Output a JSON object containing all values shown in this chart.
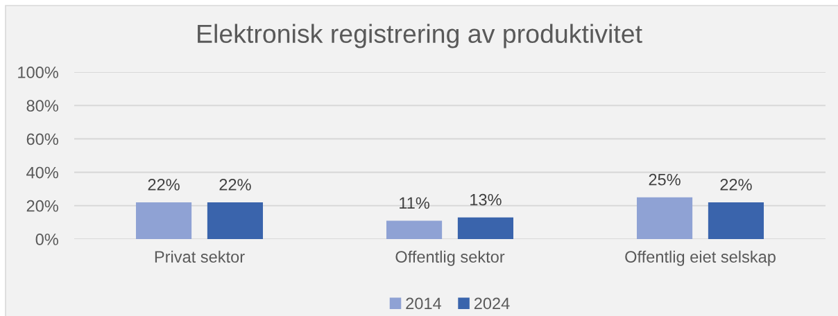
{
  "chart_data": {
    "type": "bar",
    "title": "Elektronisk registrering av produktivitet",
    "categories": [
      "Privat sektor",
      "Offentlig sektor",
      "Offentlig eiet selskap"
    ],
    "series": [
      {
        "name": "2014",
        "color": "#8fa2d4",
        "values": [
          22,
          11,
          25
        ],
        "value_labels": [
          "22%",
          "11%",
          "25%"
        ]
      },
      {
        "name": "2024",
        "color": "#3a64ac",
        "values": [
          22,
          13,
          22
        ],
        "value_labels": [
          "22%",
          "13%",
          "22%"
        ]
      }
    ],
    "ylim": [
      0,
      100
    ],
    "yticks": [
      {
        "value": 0,
        "label": "0%"
      },
      {
        "value": 20,
        "label": "20%"
      },
      {
        "value": 40,
        "label": "40%"
      },
      {
        "value": 60,
        "label": "60%"
      },
      {
        "value": 80,
        "label": "80%"
      },
      {
        "value": 100,
        "label": "100%"
      }
    ],
    "grid": "y",
    "legend": "bottom"
  }
}
